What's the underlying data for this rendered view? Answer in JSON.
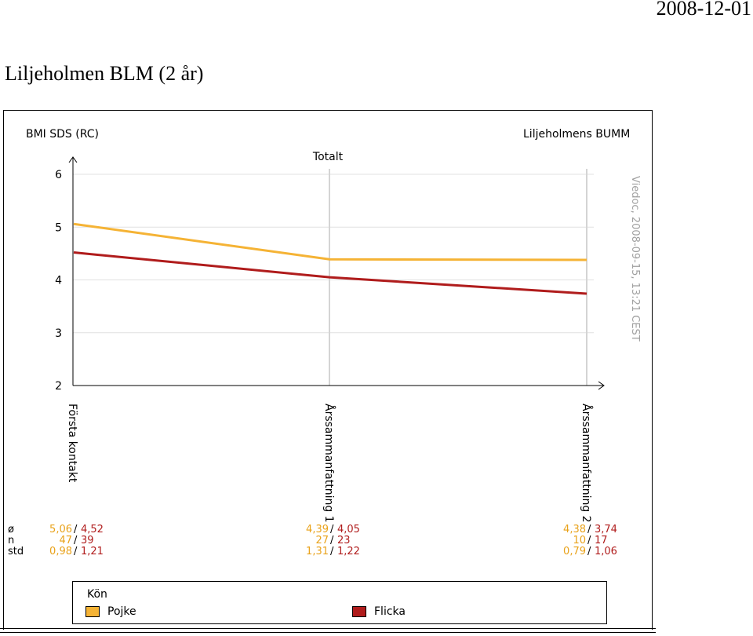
{
  "document": {
    "date": "2008-12-01",
    "title": "Liljeholmen BLM (2 år)"
  },
  "chart_data": {
    "type": "line",
    "title": "Totalt",
    "ylabel": "BMI SDS (RC)",
    "top_right_label": "Liljeholmens BUMM",
    "watermark": "Viedoc, 2008-09-15, 13:21 CEST",
    "categories": [
      "Första kontakt",
      "Årssammanfattning 1",
      "Årssammanfattning 2"
    ],
    "ylim": [
      2,
      6
    ],
    "yticks": [
      "2",
      "3",
      "4",
      "5",
      "6"
    ],
    "grid": "vertical at categories, horizontal at y ticks",
    "series": [
      {
        "name": "Pojke",
        "color": "#f5b335",
        "values": [
          5.06,
          4.39,
          4.38
        ],
        "n": [
          "47",
          "27",
          "10"
        ],
        "std": [
          "0,98",
          "1,31",
          "0,79"
        ],
        "mean_labels": [
          "5,06",
          "4,39",
          "4,38"
        ]
      },
      {
        "name": "Flicka",
        "color": "#b01c1c",
        "values": [
          4.52,
          4.05,
          3.74
        ],
        "n": [
          "39",
          "23",
          "17"
        ],
        "std": [
          "1,21",
          "1,22",
          "1,06"
        ],
        "mean_labels": [
          "4,52",
          "4,05",
          "3,74"
        ]
      }
    ],
    "stat_row_labels": [
      "ø",
      "n",
      "std"
    ],
    "legend_title": "Kön",
    "legend_placement": "bottom"
  }
}
